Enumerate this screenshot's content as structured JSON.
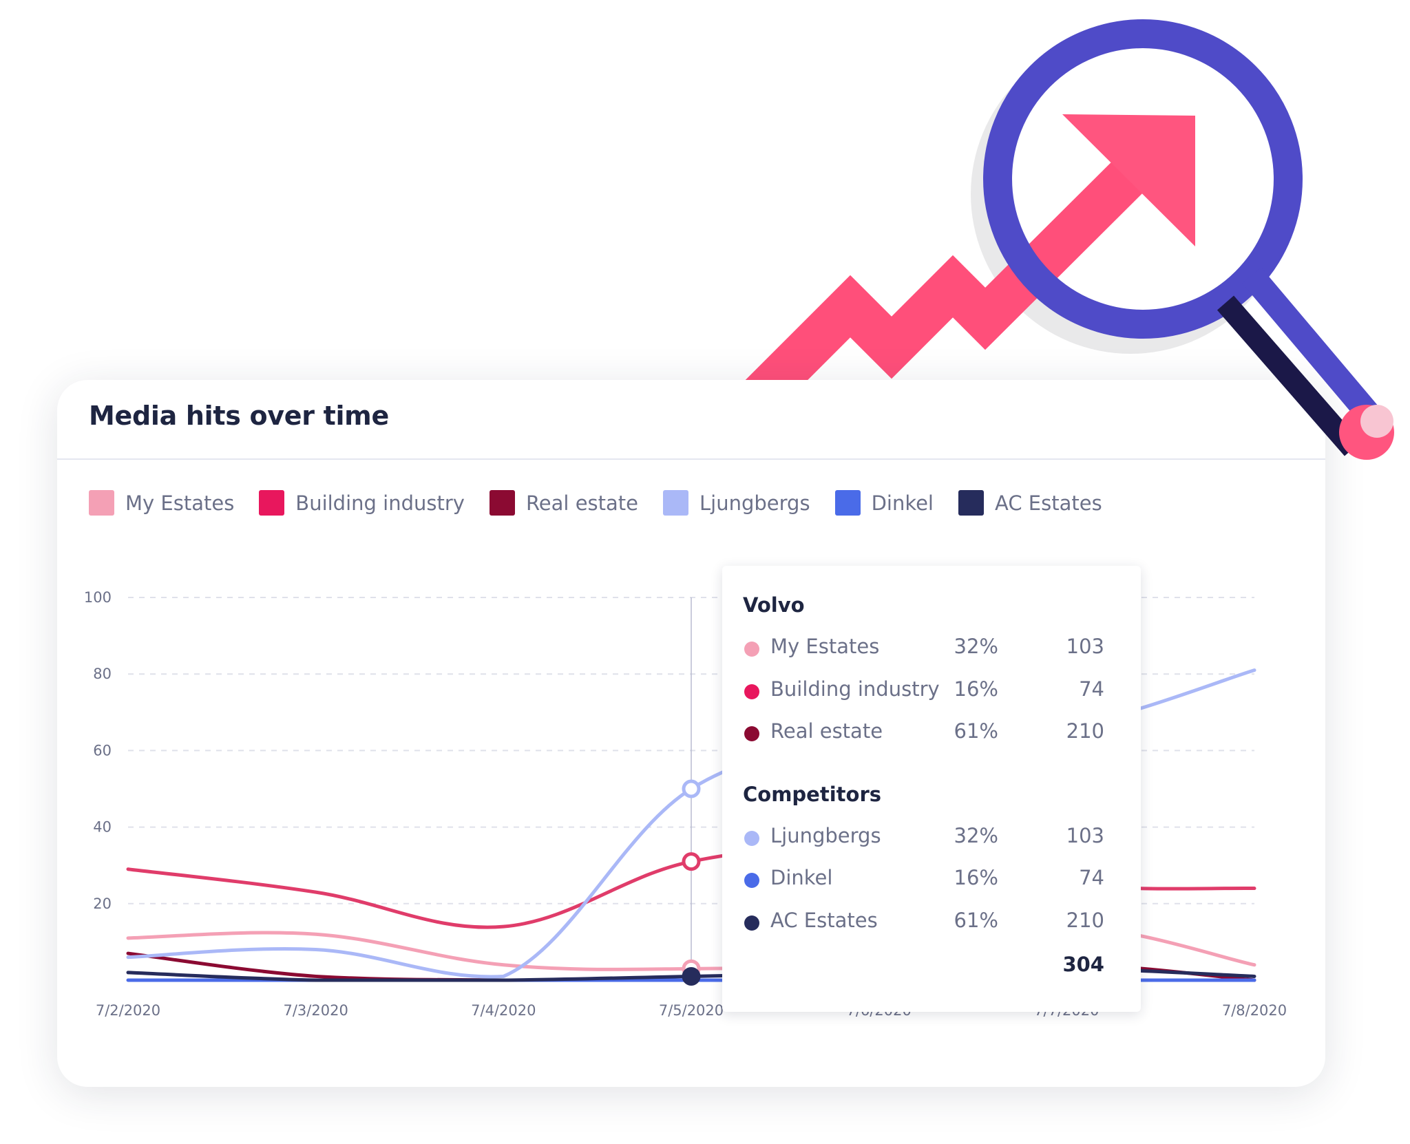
{
  "card": {
    "title": "Media hits over time"
  },
  "legend": [
    {
      "label": "My Estates",
      "color": "#f4a0b5"
    },
    {
      "label": "Building industry",
      "color": "#e8175d"
    },
    {
      "label": "Real estate",
      "color": "#8b0a32"
    },
    {
      "label": "Ljungbergs",
      "color": "#aab8f7"
    },
    {
      "label": "Dinkel",
      "color": "#4a6be8"
    },
    {
      "label": "AC Estates",
      "color": "#262c5c"
    }
  ],
  "chart_data": {
    "type": "line",
    "title": "Media hits over time",
    "x": [
      "7/2/2020",
      "7/3/2020",
      "7/4/2020",
      "7/5/2020",
      "7/6/2020",
      "7/7/2020",
      "7/8/2020"
    ],
    "ylim": [
      0,
      100
    ],
    "yticks": [
      20,
      40,
      60,
      80,
      100
    ],
    "grid": true,
    "legend_position": "top-left",
    "highlighted_x": "7/5/2020",
    "series": [
      {
        "name": "My Estates",
        "color": "#f4a0b5",
        "values": [
          11,
          12,
          4,
          3,
          5,
          14,
          4
        ]
      },
      {
        "name": "Building industry",
        "color": "#e03c6a",
        "values": [
          29,
          23,
          14,
          31,
          34,
          25,
          24
        ]
      },
      {
        "name": "Real estate",
        "color": "#8b0a32",
        "values": [
          7,
          1,
          0,
          0,
          0,
          4,
          0
        ]
      },
      {
        "name": "Ljungbergs",
        "color": "#aab8f7",
        "values": [
          6,
          8,
          1,
          50,
          62,
          66,
          81
        ]
      },
      {
        "name": "Dinkel",
        "color": "#4a6be8",
        "values": [
          0,
          0,
          0,
          0,
          0,
          0,
          0
        ]
      },
      {
        "name": "AC Estates",
        "color": "#262c5c",
        "values": [
          2,
          0,
          0,
          1,
          2,
          3,
          1
        ]
      }
    ]
  },
  "tooltip": {
    "group1": "Volvo",
    "group1_rows": [
      {
        "label": "My Estates",
        "pct": "32%",
        "value": "103",
        "color": "#f4a0b5"
      },
      {
        "label": "Building industry",
        "pct": "16%",
        "value": "74",
        "color": "#e8175d"
      },
      {
        "label": "Real estate",
        "pct": "61%",
        "value": "210",
        "color": "#8b0a32"
      }
    ],
    "group2": "Competitors",
    "group2_rows": [
      {
        "label": "Ljungbergs",
        "pct": "32%",
        "value": "103",
        "color": "#aab8f7"
      },
      {
        "label": "Dinkel",
        "pct": "16%",
        "value": "74",
        "color": "#4a6be8"
      },
      {
        "label": "AC Estates",
        "pct": "61%",
        "value": "210",
        "color": "#262c5c"
      }
    ],
    "total": "304"
  },
  "illustration": {
    "arrow_color": "#ff4f7a",
    "magnifier_color": "#4f4bc8",
    "handle_dark": "#1b1848"
  }
}
